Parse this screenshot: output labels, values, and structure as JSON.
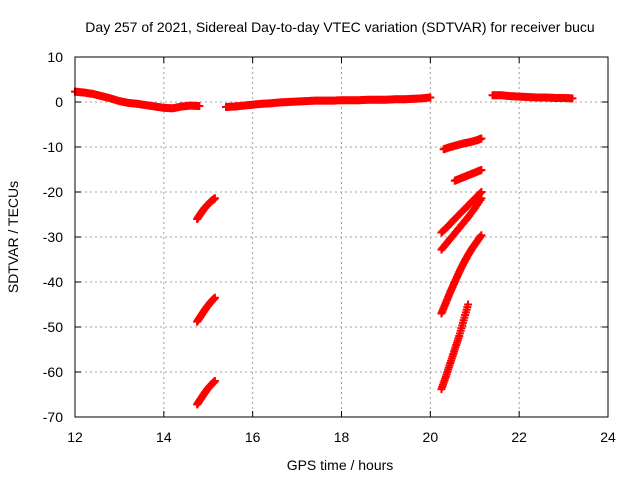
{
  "chart_data": {
    "type": "scatter",
    "title": "Day 257 of 2021, Sidereal Day-to-day VTEC variation (SDTVAR) for receiver bucu",
    "xlabel": "GPS time / hours",
    "ylabel": "SDTVAR / TECUs",
    "xlim": [
      12,
      24
    ],
    "ylim": [
      -70,
      10
    ],
    "x_ticks": [
      12,
      14,
      16,
      18,
      20,
      22,
      24
    ],
    "y_ticks": [
      10,
      0,
      -10,
      -20,
      -30,
      -40,
      -50,
      -60,
      -70
    ],
    "grid": true,
    "marker": "plus",
    "color": "#ff0000",
    "series": [
      {
        "name": "main-trace-1",
        "x": [
          12.0,
          12.2,
          12.4,
          12.6,
          12.8,
          13.0,
          13.2,
          13.4,
          13.6,
          13.8,
          14.0,
          14.2,
          14.4,
          14.6,
          14.8
        ],
        "y": [
          2.3,
          2.1,
          1.8,
          1.3,
          0.8,
          0.2,
          -0.2,
          -0.4,
          -0.7,
          -1.0,
          -1.3,
          -1.4,
          -1.0,
          -0.8,
          -0.9
        ]
      },
      {
        "name": "main-trace-2",
        "x": [
          15.4,
          15.6,
          15.8,
          16.0,
          16.2,
          16.4,
          16.6,
          16.8,
          17.0,
          17.2,
          17.4,
          17.6,
          17.8,
          18.0,
          18.2,
          18.4,
          18.6,
          18.8,
          19.0,
          19.2,
          19.4,
          19.6,
          19.8,
          20.0
        ],
        "y": [
          -1.1,
          -1.0,
          -0.8,
          -0.6,
          -0.4,
          -0.3,
          -0.1,
          0.0,
          0.1,
          0.2,
          0.3,
          0.3,
          0.3,
          0.4,
          0.4,
          0.4,
          0.5,
          0.5,
          0.5,
          0.6,
          0.6,
          0.7,
          0.8,
          1.0
        ]
      },
      {
        "name": "main-trace-3",
        "x": [
          21.4,
          21.6,
          21.8,
          22.0,
          22.2,
          22.4,
          22.6,
          22.8,
          23.0,
          23.2
        ],
        "y": [
          1.5,
          1.5,
          1.3,
          1.2,
          1.1,
          1.0,
          1.0,
          0.9,
          0.9,
          0.8
        ]
      },
      {
        "name": "low-segment-1",
        "x": [
          14.75,
          14.83,
          14.91,
          14.99,
          15.07,
          15.15
        ],
        "y": [
          -26.0,
          -24.8,
          -23.7,
          -22.8,
          -22.0,
          -21.4
        ]
      },
      {
        "name": "low-segment-2",
        "x": [
          14.75,
          14.83,
          14.91,
          14.99,
          15.07,
          15.15
        ],
        "y": [
          -48.8,
          -47.6,
          -46.4,
          -45.3,
          -44.3,
          -43.5
        ]
      },
      {
        "name": "low-segment-3",
        "x": [
          14.75,
          14.83,
          14.91,
          14.99,
          15.07,
          15.15
        ],
        "y": [
          -67.2,
          -66.0,
          -64.8,
          -63.7,
          -62.8,
          -62.0
        ]
      },
      {
        "name": "late-segment-1",
        "x": [
          20.3,
          20.45,
          20.6,
          20.75,
          20.9,
          21.05,
          21.15
        ],
        "y": [
          -10.5,
          -10.0,
          -9.6,
          -9.2,
          -8.9,
          -8.5,
          -8.1
        ]
      },
      {
        "name": "late-segment-2",
        "x": [
          20.55,
          20.7,
          20.85,
          21.0,
          21.15
        ],
        "y": [
          -17.5,
          -16.9,
          -16.3,
          -15.7,
          -15.1
        ]
      },
      {
        "name": "late-segment-3",
        "x": [
          20.25,
          20.4,
          20.55,
          20.7,
          20.85,
          21.0,
          21.15
        ],
        "y": [
          -29.0,
          -27.6,
          -26.0,
          -24.5,
          -23.0,
          -21.5,
          -20.0
        ]
      },
      {
        "name": "late-segment-4",
        "x": [
          20.25,
          20.4,
          20.55,
          20.7,
          20.85,
          21.0,
          21.15
        ],
        "y": [
          -32.8,
          -31.0,
          -29.2,
          -27.4,
          -25.6,
          -23.6,
          -21.4
        ]
      },
      {
        "name": "late-segment-5",
        "x": [
          20.25,
          20.35,
          20.45,
          20.55,
          20.65,
          20.75,
          20.85,
          20.95,
          21.05,
          21.15
        ],
        "y": [
          -47.0,
          -44.6,
          -42.2,
          -40.0,
          -37.8,
          -35.8,
          -34.0,
          -32.4,
          -31.0,
          -29.6
        ]
      },
      {
        "name": "late-segment-6",
        "x": [
          20.25,
          20.35,
          20.45,
          20.55,
          20.65,
          20.75,
          20.85
        ],
        "y": [
          -63.8,
          -61.0,
          -58.0,
          -55.0,
          -52.0,
          -48.5,
          -45.0
        ]
      }
    ]
  }
}
